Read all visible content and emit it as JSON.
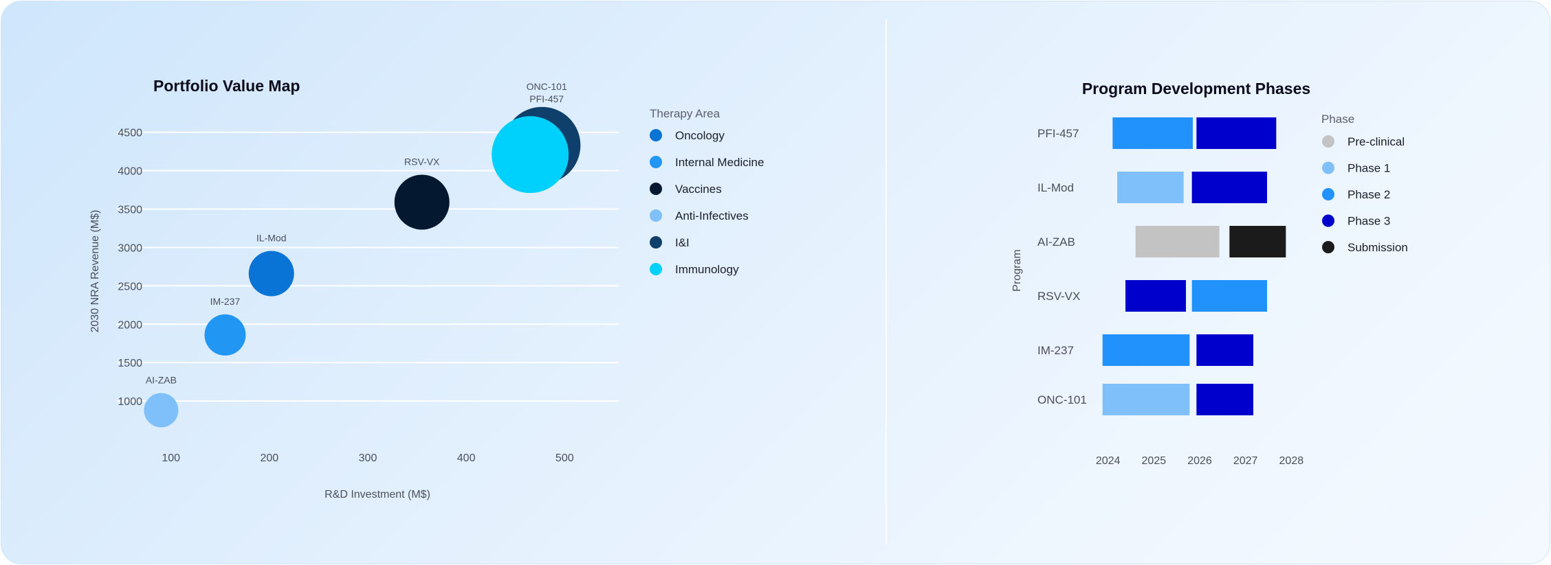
{
  "chart_data": [
    {
      "type": "scatter",
      "variant": "bubble",
      "title": "Portfolio Value Map",
      "xlabel": "R&D Investment (M$)",
      "ylabel": "2030 NRA Revenue (M$)",
      "xlim": [
        45,
        555
      ],
      "ylim": [
        500,
        4900
      ],
      "xticks": [
        100,
        200,
        300,
        400,
        500
      ],
      "yticks": [
        1000,
        1500,
        2000,
        2500,
        3000,
        3500,
        4000,
        4500
      ],
      "grid": "horizontal",
      "legend": {
        "title": "Therapy Area",
        "position": "right",
        "items": [
          {
            "label": "Oncology",
            "color": "#0a74d6"
          },
          {
            "label": "Internal Medicine",
            "color": "#2196f3"
          },
          {
            "label": "Vaccines",
            "color": "#041830"
          },
          {
            "label": "Anti-Infectives",
            "color": "#7fc0fa"
          },
          {
            "label": "I&I",
            "color": "#0f3f6b"
          },
          {
            "label": "Immunology",
            "color": "#00d0fc"
          }
        ]
      },
      "points": [
        {
          "name": "AI-ZAB",
          "x": 90,
          "y": 880,
          "size": 25,
          "area": "Anti-Infectives"
        },
        {
          "name": "IM-237",
          "x": 155,
          "y": 1860,
          "size": 30,
          "area": "Internal Medicine"
        },
        {
          "name": "IL-Mod",
          "x": 202,
          "y": 2660,
          "size": 33,
          "area": "Oncology"
        },
        {
          "name": "RSV-VX",
          "x": 355,
          "y": 3590,
          "size": 40,
          "area": "Vaccines"
        },
        {
          "name": "ONC-101",
          "x": 477,
          "y": 4330,
          "size": 56,
          "area": "I&I"
        },
        {
          "name": "PFI-457",
          "x": 465,
          "y": 4210,
          "size": 56,
          "area": "Immunology"
        }
      ],
      "stacked_label_lines": [
        "ONC-101",
        "PFI-457"
      ]
    },
    {
      "type": "bar",
      "variant": "gantt",
      "title": "Program Development Phases",
      "ylabel": "Program",
      "xlim": [
        2023.75,
        2028.25
      ],
      "xticks": [
        2024,
        2025,
        2026,
        2027,
        2028
      ],
      "categories": [
        "PFI-457",
        "IL-Mod",
        "AI-ZAB",
        "RSV-VX",
        "IM-237",
        "ONC-101"
      ],
      "legend": {
        "title": "Phase",
        "position": "right",
        "items": [
          {
            "label": "Pre-clinical",
            "color": "#c3c3c3"
          },
          {
            "label": "Phase 1",
            "color": "#7fc0fa"
          },
          {
            "label": "Phase 2",
            "color": "#2192fb"
          },
          {
            "label": "Phase 3",
            "color": "#0000cd"
          },
          {
            "label": "Submission",
            "color": "#1b1b1b"
          }
        ]
      },
      "bars": [
        {
          "program": "PFI-457",
          "phase": "Phase 2",
          "start": 2024.1,
          "end": 2025.85
        },
        {
          "program": "PFI-457",
          "phase": "Phase 3",
          "start": 2025.93,
          "end": 2027.67
        },
        {
          "program": "IL-Mod",
          "phase": "Phase 1",
          "start": 2024.2,
          "end": 2025.65
        },
        {
          "program": "IL-Mod",
          "phase": "Phase 3",
          "start": 2025.83,
          "end": 2027.47
        },
        {
          "program": "AI-ZAB",
          "phase": "Pre-clinical",
          "start": 2024.6,
          "end": 2026.43
        },
        {
          "program": "AI-ZAB",
          "phase": "Submission",
          "start": 2026.65,
          "end": 2027.88
        },
        {
          "program": "RSV-VX",
          "phase": "Phase 3",
          "start": 2024.38,
          "end": 2025.7
        },
        {
          "program": "RSV-VX",
          "phase": "Phase 2",
          "start": 2025.83,
          "end": 2027.47
        },
        {
          "program": "IM-237",
          "phase": "Phase 2",
          "start": 2023.88,
          "end": 2025.78
        },
        {
          "program": "IM-237",
          "phase": "Phase 3",
          "start": 2025.93,
          "end": 2027.17
        },
        {
          "program": "ONC-101",
          "phase": "Phase 1",
          "start": 2023.88,
          "end": 2025.78
        },
        {
          "program": "ONC-101",
          "phase": "Phase 3",
          "start": 2025.93,
          "end": 2027.17
        }
      ]
    }
  ]
}
